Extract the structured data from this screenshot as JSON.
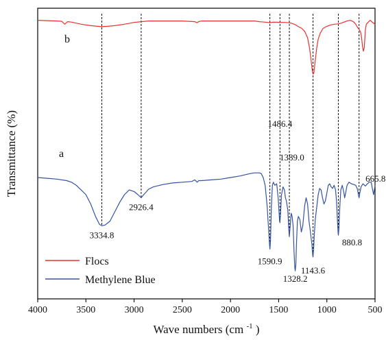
{
  "chart_data": {
    "type": "line",
    "title": "",
    "xlabel": "Wave numbers",
    "xlabel_unit": "(cm",
    "xlabel_sup": "-1",
    "xlabel_close": ")",
    "ylabel": "Transmittance (%)",
    "xlim": [
      4000,
      500
    ],
    "x_ticks": [
      4000,
      3500,
      3000,
      2500,
      2000,
      1500,
      1000,
      500
    ],
    "x_tick_labels": [
      "4000",
      "3500",
      "3000",
      "2500",
      "2000",
      "1500",
      "1000",
      "500"
    ],
    "y_ticks_shown": false,
    "grid": false,
    "legend_position": "bottom-left",
    "series": [
      {
        "name": "Flocs",
        "trace_label": "b",
        "color": "#e8312e",
        "points": [
          [
            4000,
            0.985
          ],
          [
            3900,
            0.98
          ],
          [
            3800,
            0.975
          ],
          [
            3750,
            0.97
          ],
          [
            3720,
            0.93
          ],
          [
            3690,
            0.965
          ],
          [
            3650,
            0.96
          ],
          [
            3550,
            0.93
          ],
          [
            3450,
            0.91
          ],
          [
            3380,
            0.9
          ],
          [
            3334.8,
            0.895
          ],
          [
            3280,
            0.9
          ],
          [
            3200,
            0.91
          ],
          [
            3100,
            0.93
          ],
          [
            3000,
            0.955
          ],
          [
            2926.4,
            0.965
          ],
          [
            2850,
            0.975
          ],
          [
            2700,
            0.975
          ],
          [
            2500,
            0.975
          ],
          [
            2370,
            0.965
          ],
          [
            2345,
            0.95
          ],
          [
            2330,
            0.965
          ],
          [
            2300,
            0.975
          ],
          [
            2100,
            0.975
          ],
          [
            1900,
            0.975
          ],
          [
            1750,
            0.975
          ],
          [
            1700,
            0.965
          ],
          [
            1650,
            0.96
          ],
          [
            1610,
            0.955
          ],
          [
            1590.9,
            0.95
          ],
          [
            1560,
            0.958
          ],
          [
            1520,
            0.958
          ],
          [
            1486.4,
            0.955
          ],
          [
            1440,
            0.955
          ],
          [
            1389.0,
            0.95
          ],
          [
            1360,
            0.94
          ],
          [
            1330,
            0.925
          ],
          [
            1300,
            0.9
          ],
          [
            1260,
            0.87
          ],
          [
            1230,
            0.83
          ],
          [
            1200,
            0.74
          ],
          [
            1180,
            0.6
          ],
          [
            1165,
            0.45
          ],
          [
            1155,
            0.32
          ],
          [
            1145,
            0.24
          ],
          [
            1143.6,
            0.23
          ],
          [
            1135,
            0.24
          ],
          [
            1120,
            0.42
          ],
          [
            1105,
            0.6
          ],
          [
            1090,
            0.72
          ],
          [
            1070,
            0.8
          ],
          [
            1040,
            0.87
          ],
          [
            1000,
            0.9
          ],
          [
            960,
            0.92
          ],
          [
            920,
            0.93
          ],
          [
            880.8,
            0.935
          ],
          [
            850,
            0.945
          ],
          [
            820,
            0.96
          ],
          [
            790,
            0.975
          ],
          [
            760,
            0.985
          ],
          [
            740,
            0.975
          ],
          [
            720,
            0.96
          ],
          [
            700,
            0.93
          ],
          [
            680,
            0.88
          ],
          [
            665.8,
            0.86
          ],
          [
            650,
            0.82
          ],
          [
            640,
            0.75
          ],
          [
            630,
            0.62
          ],
          [
            620,
            0.55
          ],
          [
            612,
            0.6
          ],
          [
            600,
            0.85
          ],
          [
            590,
            0.93
          ],
          [
            570,
            0.96
          ],
          [
            550,
            0.985
          ],
          [
            530,
            0.96
          ],
          [
            510,
            0.94
          ],
          [
            500,
            0.92
          ]
        ]
      },
      {
        "name": "Methylene Blue",
        "trace_label": "a",
        "color": "#3352a0",
        "points": [
          [
            4000,
            0.63
          ],
          [
            3900,
            0.625
          ],
          [
            3800,
            0.62
          ],
          [
            3700,
            0.61
          ],
          [
            3650,
            0.6
          ],
          [
            3600,
            0.58
          ],
          [
            3550,
            0.55
          ],
          [
            3500,
            0.52
          ],
          [
            3450,
            0.46
          ],
          [
            3400,
            0.38
          ],
          [
            3360,
            0.33
          ],
          [
            3334.8,
            0.32
          ],
          [
            3300,
            0.325
          ],
          [
            3250,
            0.35
          ],
          [
            3200,
            0.41
          ],
          [
            3150,
            0.47
          ],
          [
            3100,
            0.52
          ],
          [
            3050,
            0.55
          ],
          [
            3000,
            0.54
          ],
          [
            2960,
            0.52
          ],
          [
            2926.4,
            0.5
          ],
          [
            2900,
            0.52
          ],
          [
            2870,
            0.54
          ],
          [
            2850,
            0.555
          ],
          [
            2800,
            0.57
          ],
          [
            2700,
            0.585
          ],
          [
            2600,
            0.595
          ],
          [
            2500,
            0.6
          ],
          [
            2400,
            0.605
          ],
          [
            2370,
            0.615
          ],
          [
            2345,
            0.6
          ],
          [
            2330,
            0.61
          ],
          [
            2300,
            0.61
          ],
          [
            2200,
            0.615
          ],
          [
            2100,
            0.62
          ],
          [
            2000,
            0.63
          ],
          [
            1900,
            0.64
          ],
          [
            1800,
            0.655
          ],
          [
            1750,
            0.66
          ],
          [
            1700,
            0.66
          ],
          [
            1680,
            0.655
          ],
          [
            1660,
            0.63
          ],
          [
            1640,
            0.58
          ],
          [
            1620,
            0.45
          ],
          [
            1605,
            0.3
          ],
          [
            1595,
            0.2
          ],
          [
            1590.9,
            0.17
          ],
          [
            1585,
            0.22
          ],
          [
            1575,
            0.45
          ],
          [
            1565,
            0.58
          ],
          [
            1555,
            0.6
          ],
          [
            1540,
            0.58
          ],
          [
            1520,
            0.59
          ],
          [
            1505,
            0.5
          ],
          [
            1495,
            0.4
          ],
          [
            1490,
            0.35
          ],
          [
            1486.4,
            0.34
          ],
          [
            1480,
            0.4
          ],
          [
            1470,
            0.52
          ],
          [
            1455,
            0.57
          ],
          [
            1440,
            0.55
          ],
          [
            1430,
            0.5
          ],
          [
            1420,
            0.48
          ],
          [
            1405,
            0.42
          ],
          [
            1395,
            0.3
          ],
          [
            1389.0,
            0.25
          ],
          [
            1380,
            0.32
          ],
          [
            1370,
            0.4
          ],
          [
            1360,
            0.38
          ],
          [
            1350,
            0.32
          ],
          [
            1340,
            0.15
          ],
          [
            1332,
            0.05
          ],
          [
            1328.2,
            0.03
          ],
          [
            1322,
            0.07
          ],
          [
            1315,
            0.2
          ],
          [
            1305,
            0.35
          ],
          [
            1295,
            0.38
          ],
          [
            1280,
            0.36
          ],
          [
            1265,
            0.28
          ],
          [
            1250,
            0.32
          ],
          [
            1230,
            0.45
          ],
          [
            1215,
            0.5
          ],
          [
            1200,
            0.46
          ],
          [
            1185,
            0.35
          ],
          [
            1170,
            0.28
          ],
          [
            1155,
            0.2
          ],
          [
            1147,
            0.13
          ],
          [
            1143.6,
            0.12
          ],
          [
            1138,
            0.16
          ],
          [
            1130,
            0.26
          ],
          [
            1120,
            0.36
          ],
          [
            1105,
            0.44
          ],
          [
            1090,
            0.52
          ],
          [
            1075,
            0.56
          ],
          [
            1060,
            0.55
          ],
          [
            1045,
            0.5
          ],
          [
            1030,
            0.46
          ],
          [
            1015,
            0.48
          ],
          [
            1000,
            0.53
          ],
          [
            985,
            0.58
          ],
          [
            970,
            0.59
          ],
          [
            955,
            0.57
          ],
          [
            940,
            0.56
          ],
          [
            925,
            0.58
          ],
          [
            910,
            0.55
          ],
          [
            900,
            0.48
          ],
          [
            890,
            0.35
          ],
          [
            883,
            0.27
          ],
          [
            880.8,
            0.26
          ],
          [
            875,
            0.3
          ],
          [
            865,
            0.45
          ],
          [
            855,
            0.55
          ],
          [
            840,
            0.58
          ],
          [
            825,
            0.54
          ],
          [
            815,
            0.5
          ],
          [
            805,
            0.53
          ],
          [
            790,
            0.58
          ],
          [
            770,
            0.6
          ],
          [
            745,
            0.59
          ],
          [
            720,
            0.585
          ],
          [
            700,
            0.58
          ],
          [
            685,
            0.56
          ],
          [
            672,
            0.52
          ],
          [
            665.8,
            0.5
          ],
          [
            658,
            0.53
          ],
          [
            645,
            0.57
          ],
          [
            625,
            0.59
          ],
          [
            600,
            0.575
          ],
          [
            580,
            0.59
          ],
          [
            560,
            0.6
          ],
          [
            540,
            0.6
          ],
          [
            525,
            0.55
          ],
          [
            515,
            0.52
          ],
          [
            505,
            0.56
          ],
          [
            500,
            0.58
          ]
        ]
      }
    ],
    "annotations": [
      {
        "label": "3334.8",
        "x": 3334.8,
        "trace": "a",
        "line": true
      },
      {
        "label": "2926.4",
        "x": 2926.4,
        "trace": "a",
        "line": true
      },
      {
        "label": "1590.9",
        "x": 1590.9,
        "trace": "a",
        "line": true
      },
      {
        "label": "1486.4",
        "x": 1486.4,
        "trace": "a",
        "line": true
      },
      {
        "label": "1389.0",
        "x": 1389.0,
        "trace": "a",
        "line": true
      },
      {
        "label": "1328.2",
        "x": 1328.2,
        "trace": "a",
        "line": false
      },
      {
        "label": "1143.6",
        "x": 1143.6,
        "trace": "a",
        "line": true
      },
      {
        "label": "880.8",
        "x": 880.8,
        "trace": "a",
        "line": true
      },
      {
        "label": "665.8",
        "x": 665.8,
        "trace": "a",
        "line": true
      }
    ]
  }
}
